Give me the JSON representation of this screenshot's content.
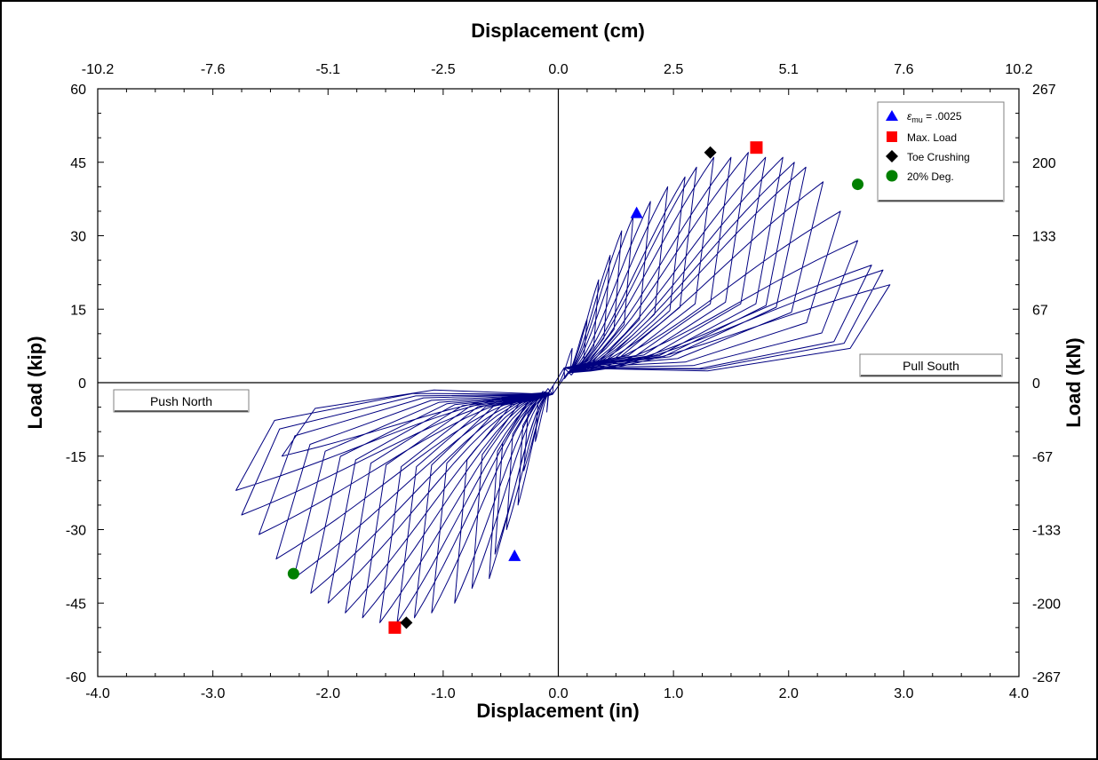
{
  "chart_data": {
    "type": "line",
    "xlabel": "Displacement (in)",
    "ylabel": "Load (kip)",
    "x2label": "Displacement (cm)",
    "y2label": "Load (kN)",
    "xlim": [
      -4.0,
      4.0
    ],
    "ylim": [
      -60,
      60
    ],
    "grid": false,
    "x_ticks": [
      "-4.0",
      "-3.0",
      "-2.0",
      "-1.0",
      "0.0",
      "1.0",
      "2.0",
      "3.0",
      "4.0"
    ],
    "y_ticks": [
      "60",
      "45",
      "30",
      "15",
      "0",
      "-15",
      "-30",
      "-45",
      "-60"
    ],
    "x2_ticks": [
      "-10.2",
      "-7.6",
      "-5.1",
      "-2.5",
      "0.0",
      "2.5",
      "5.1",
      "7.6",
      "10.2"
    ],
    "y2_ticks": [
      "267",
      "200",
      "133",
      "67",
      "0",
      "-67",
      "-133",
      "-200",
      "-267"
    ],
    "annotations": {
      "pull": "Pull South",
      "push": "Push North"
    },
    "series_color": "#000080",
    "legend": {
      "placement": "top-right",
      "entries": [
        {
          "label_main": "ε",
          "label_sub": "mu",
          "label_rest": " = .0025",
          "marker": "triangle",
          "color": "#0000ff"
        },
        {
          "label": "Max. Load",
          "marker": "square",
          "color": "#ff0000"
        },
        {
          "label": "Toe Crushing",
          "marker": "diamond",
          "color": "#000000"
        },
        {
          "label": "20% Deg.",
          "marker": "circle",
          "color": "#008000"
        }
      ]
    },
    "cycles": [
      {
        "xp": 0.12,
        "yp": 7,
        "xn": -0.1,
        "yn": -6
      },
      {
        "xp": 0.25,
        "yp": 13,
        "xn": -0.2,
        "yn": -12
      },
      {
        "xp": 0.35,
        "yp": 21,
        "xn": -0.3,
        "yn": -18
      },
      {
        "xp": 0.45,
        "yp": 26,
        "xn": -0.35,
        "yn": -25
      },
      {
        "xp": 0.55,
        "yp": 31,
        "xn": -0.45,
        "yn": -30
      },
      {
        "xp": 0.65,
        "yp": 34,
        "xn": -0.55,
        "yn": -35
      },
      {
        "xp": 0.8,
        "yp": 37,
        "xn": -0.6,
        "yn": -40
      },
      {
        "xp": 0.95,
        "yp": 40,
        "xn": -0.75,
        "yn": -42
      },
      {
        "xp": 1.1,
        "yp": 42,
        "xn": -0.9,
        "yn": -45
      },
      {
        "xp": 1.2,
        "yp": 44,
        "xn": -1.1,
        "yn": -47
      },
      {
        "xp": 1.35,
        "yp": 46,
        "xn": -1.25,
        "yn": -48
      },
      {
        "xp": 1.5,
        "yp": 46,
        "xn": -1.4,
        "yn": -49
      },
      {
        "xp": 1.65,
        "yp": 47,
        "xn": -1.55,
        "yn": -49
      },
      {
        "xp": 1.8,
        "yp": 46,
        "xn": -1.7,
        "yn": -48
      },
      {
        "xp": 1.95,
        "yp": 46,
        "xn": -1.85,
        "yn": -47
      },
      {
        "xp": 2.05,
        "yp": 45,
        "xn": -2.0,
        "yn": -45
      },
      {
        "xp": 2.15,
        "yp": 44,
        "xn": -2.15,
        "yn": -43
      },
      {
        "xp": 2.3,
        "yp": 41,
        "xn": -2.3,
        "yn": -40
      },
      {
        "xp": 2.45,
        "yp": 35,
        "xn": -2.45,
        "yn": -36
      },
      {
        "xp": 2.6,
        "yp": 29,
        "xn": -2.6,
        "yn": -31
      },
      {
        "xp": 2.72,
        "yp": 24,
        "xn": -2.75,
        "yn": -27
      },
      {
        "xp": 2.82,
        "yp": 23,
        "xn": -2.8,
        "yn": -22
      },
      {
        "xp": 2.88,
        "yp": 20,
        "xn": -2.4,
        "yn": -15
      }
    ],
    "markers": [
      {
        "name": "strain-limit-pos",
        "shape": "triangle",
        "color": "#0000ff",
        "x": 0.68,
        "y": 34.5
      },
      {
        "name": "strain-limit-neg",
        "shape": "triangle",
        "color": "#0000ff",
        "x": -0.38,
        "y": -35.5
      },
      {
        "name": "max-load-pos",
        "shape": "square",
        "color": "#ff0000",
        "x": 1.72,
        "y": 48
      },
      {
        "name": "max-load-neg",
        "shape": "square",
        "color": "#ff0000",
        "x": -1.42,
        "y": -50
      },
      {
        "name": "toe-crushing-pos",
        "shape": "diamond",
        "color": "#000000",
        "x": 1.32,
        "y": 47
      },
      {
        "name": "toe-crushing-neg",
        "shape": "diamond",
        "color": "#000000",
        "x": -1.32,
        "y": -49
      },
      {
        "name": "deg-20-pos",
        "shape": "circle",
        "color": "#008000",
        "x": 2.6,
        "y": 40.5
      },
      {
        "name": "deg-20-neg",
        "shape": "circle",
        "color": "#008000",
        "x": -2.3,
        "y": -39
      }
    ]
  }
}
